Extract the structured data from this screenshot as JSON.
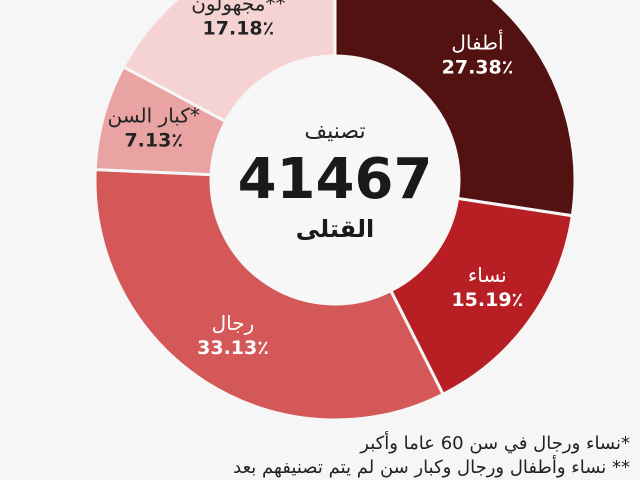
{
  "chart_data": {
    "type": "donut",
    "center": {
      "title": "تصنيف",
      "total": "41467",
      "subtitle": "القتلى"
    },
    "series": [
      {
        "label": "أطفال",
        "value": 27.38,
        "display": "27.38٪",
        "color": "#531212",
        "label_color": "#ffffff"
      },
      {
        "label": "نساء",
        "value": 15.19,
        "display": "15.19٪",
        "color": "#b81f24",
        "label_color": "#ffffff"
      },
      {
        "label": "رجال",
        "value": 33.13,
        "display": "33.13٪",
        "color": "#d45858",
        "label_color": "#ffffff"
      },
      {
        "label": "كبار السن*",
        "value": 7.13,
        "display": "7.13٪",
        "color": "#e9a3a3",
        "label_color": "#222222"
      },
      {
        "label": "مجهولون**",
        "value": 17.18,
        "display": "17.18٪",
        "color": "#f5d3d3",
        "label_color": "#222222"
      }
    ]
  },
  "footnotes": [
    "*نساء ورجال في سن 60 عاما وأكبر",
    "** نساء وأطفال ورجال وكبار سن لم يتم تصنيفهم بعد"
  ]
}
